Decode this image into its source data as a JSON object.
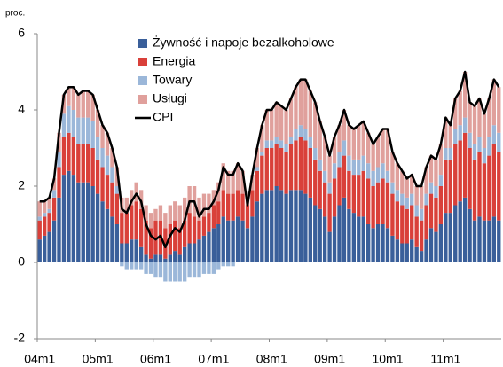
{
  "chart_data": {
    "type": "bar",
    "stacked": true,
    "y_label": "proc.",
    "categories": [
      "04m1",
      null,
      null,
      null,
      null,
      null,
      null,
      null,
      null,
      null,
      null,
      null,
      "05m1",
      null,
      null,
      null,
      null,
      null,
      null,
      null,
      null,
      null,
      null,
      null,
      "06m1",
      null,
      null,
      null,
      null,
      null,
      null,
      null,
      null,
      null,
      null,
      null,
      "07m1",
      null,
      null,
      null,
      null,
      null,
      null,
      null,
      null,
      null,
      null,
      null,
      "08m1",
      null,
      null,
      null,
      null,
      null,
      null,
      null,
      null,
      null,
      null,
      null,
      "09m1",
      null,
      null,
      null,
      null,
      null,
      null,
      null,
      null,
      null,
      null,
      null,
      "10m1",
      null,
      null,
      null,
      null,
      null,
      null,
      null,
      null,
      null,
      null,
      null,
      "11m1",
      null,
      null,
      null,
      null,
      null,
      null,
      null,
      null,
      null,
      null,
      null
    ],
    "ylim": [
      -2,
      6
    ],
    "yticks": [
      -2,
      0,
      2,
      4,
      6
    ],
    "grid": false,
    "legend": "top",
    "series": [
      {
        "name": "Żywność i napoje bezalkoholowe",
        "color": "#3a5f9a",
        "values": [
          0.6,
          0.7,
          0.8,
          1.1,
          1.7,
          2.3,
          2.4,
          2.3,
          2.1,
          2.1,
          2.1,
          2.0,
          1.8,
          1.6,
          1.4,
          1.2,
          1.0,
          0.5,
          0.5,
          0.6,
          0.6,
          0.4,
          0.2,
          0.1,
          0.2,
          0.2,
          0.1,
          0.2,
          0.3,
          0.2,
          0.4,
          0.5,
          0.5,
          0.6,
          0.7,
          0.8,
          0.9,
          1.0,
          1.2,
          1.1,
          1.1,
          1.2,
          1.1,
          0.9,
          1.2,
          1.6,
          1.8,
          1.9,
          1.9,
          2.0,
          1.9,
          1.8,
          1.9,
          1.9,
          1.9,
          1.8,
          1.7,
          1.5,
          1.4,
          1.2,
          0.8,
          1.2,
          1.5,
          1.7,
          1.4,
          1.3,
          1.2,
          1.2,
          1.0,
          0.9,
          1.0,
          1.0,
          0.9,
          0.7,
          0.6,
          0.5,
          0.5,
          0.6,
          0.4,
          0.3,
          0.6,
          0.9,
          0.8,
          1.0,
          1.3,
          1.3,
          1.5,
          1.6,
          1.7,
          1.4,
          1.1,
          1.2,
          1.1,
          1.1,
          1.2,
          1.1
        ]
      },
      {
        "name": "Energia",
        "color": "#d9403a",
        "values": [
          0.5,
          0.5,
          0.5,
          0.6,
          0.8,
          1.0,
          1.0,
          1.0,
          1.0,
          1.0,
          1.0,
          1.0,
          0.9,
          0.9,
          0.9,
          0.9,
          0.8,
          0.8,
          0.8,
          0.9,
          1.0,
          1.0,
          0.9,
          0.8,
          0.9,
          0.9,
          0.8,
          0.8,
          0.8,
          0.7,
          0.7,
          0.8,
          0.7,
          0.5,
          0.5,
          0.5,
          0.6,
          0.6,
          0.7,
          0.7,
          0.7,
          0.7,
          0.7,
          0.6,
          0.7,
          0.8,
          1.0,
          1.1,
          1.1,
          1.1,
          1.1,
          1.1,
          1.2,
          1.3,
          1.4,
          1.4,
          1.3,
          1.2,
          1.0,
          0.9,
          1.0,
          1.0,
          1.0,
          1.1,
          1.0,
          1.0,
          1.1,
          1.2,
          1.2,
          1.1,
          1.1,
          1.2,
          1.2,
          1.1,
          1.0,
          1.0,
          0.9,
          0.9,
          0.8,
          0.8,
          0.9,
          0.9,
          0.9,
          1.0,
          1.4,
          1.4,
          1.6,
          1.6,
          1.7,
          1.6,
          1.6,
          1.7,
          1.5,
          1.7,
          1.9,
          1.8
        ]
      },
      {
        "name": "Towary",
        "color": "#9bb7d9",
        "values": [
          0.1,
          0.1,
          0.1,
          0.2,
          0.4,
          0.6,
          0.7,
          0.7,
          0.7,
          0.7,
          0.7,
          0.7,
          0.6,
          0.5,
          0.5,
          0.4,
          0.2,
          -0.1,
          -0.2,
          -0.2,
          -0.2,
          -0.2,
          -0.3,
          -0.3,
          -0.4,
          -0.4,
          -0.5,
          -0.5,
          -0.5,
          -0.5,
          -0.5,
          -0.4,
          -0.4,
          -0.4,
          -0.3,
          -0.3,
          -0.3,
          -0.2,
          -0.1,
          -0.1,
          -0.1,
          0.0,
          0.0,
          0.0,
          0.0,
          0.1,
          0.1,
          0.2,
          0.2,
          0.2,
          0.2,
          0.2,
          0.2,
          0.3,
          0.3,
          0.3,
          0.3,
          0.3,
          0.3,
          0.3,
          0.3,
          0.4,
          0.4,
          0.4,
          0.4,
          0.4,
          0.4,
          0.4,
          0.4,
          0.4,
          0.4,
          0.4,
          0.3,
          0.3,
          0.3,
          0.3,
          0.3,
          0.3,
          0.3,
          0.3,
          0.3,
          0.3,
          0.3,
          0.3,
          0.3,
          0.3,
          0.4,
          0.4,
          0.4,
          0.4,
          0.4,
          0.4,
          0.4,
          0.5,
          0.5,
          0.5
        ]
      },
      {
        "name": "Usługi",
        "color": "#e0a09c",
        "values": [
          0.4,
          0.3,
          0.3,
          0.3,
          0.5,
          0.5,
          0.5,
          0.6,
          0.6,
          0.7,
          0.7,
          0.7,
          0.7,
          0.6,
          0.6,
          0.5,
          0.5,
          0.4,
          0.4,
          0.4,
          0.5,
          0.5,
          0.4,
          0.4,
          0.3,
          0.4,
          0.4,
          0.5,
          0.5,
          0.6,
          0.6,
          0.7,
          0.8,
          0.6,
          0.6,
          0.5,
          0.4,
          0.5,
          0.7,
          0.6,
          0.6,
          0.7,
          0.6,
          0.2,
          0.4,
          0.5,
          0.7,
          0.8,
          0.8,
          0.9,
          0.9,
          0.9,
          1.0,
          1.1,
          1.2,
          1.3,
          1.2,
          1.2,
          1.0,
          0.9,
          0.7,
          0.7,
          0.7,
          0.8,
          0.8,
          0.8,
          0.9,
          0.9,
          0.8,
          0.7,
          0.8,
          0.9,
          1.1,
          0.8,
          0.7,
          0.6,
          0.5,
          0.5,
          0.5,
          0.6,
          0.7,
          0.7,
          0.7,
          0.8,
          0.8,
          0.6,
          0.8,
          0.9,
          1.2,
          0.8,
          1.0,
          1.0,
          0.9,
          1.0,
          1.2,
          1.2
        ]
      },
      {
        "name": "CPI",
        "color": "#000000",
        "type": "line",
        "values": [
          1.6,
          1.6,
          1.7,
          2.2,
          3.4,
          4.4,
          4.6,
          4.6,
          4.4,
          4.5,
          4.5,
          4.4,
          4.0,
          3.6,
          3.4,
          3.0,
          2.5,
          1.4,
          1.3,
          1.6,
          1.8,
          1.6,
          1.0,
          0.7,
          0.6,
          0.7,
          0.4,
          0.7,
          0.9,
          0.8,
          1.1,
          1.6,
          1.6,
          1.2,
          1.4,
          1.4,
          1.6,
          1.9,
          2.5,
          2.3,
          2.3,
          2.6,
          2.4,
          1.5,
          2.3,
          3.0,
          3.6,
          4.0,
          4.0,
          4.2,
          4.1,
          4.0,
          4.3,
          4.6,
          4.8,
          4.8,
          4.5,
          4.2,
          3.7,
          3.3,
          2.8,
          3.3,
          3.6,
          4.0,
          3.6,
          3.5,
          3.6,
          3.7,
          3.4,
          3.1,
          3.3,
          3.5,
          3.5,
          2.9,
          2.6,
          2.4,
          2.2,
          2.3,
          2.0,
          2.0,
          2.5,
          2.8,
          2.7,
          3.1,
          3.8,
          3.6,
          4.3,
          4.5,
          5.0,
          4.2,
          4.1,
          4.3,
          3.9,
          4.3,
          4.8,
          4.6
        ]
      }
    ]
  }
}
